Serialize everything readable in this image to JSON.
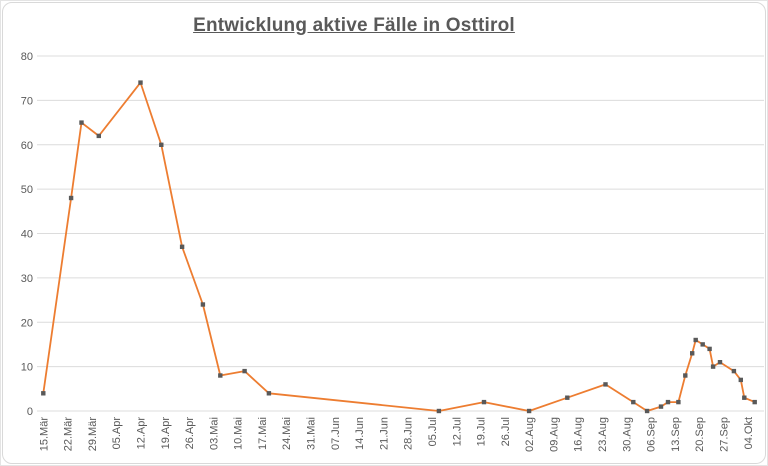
{
  "window": {
    "background": "#ffffff",
    "outer_border_color": "#e4e4e4",
    "chart_border_color": "#d9d9d9"
  },
  "chart_data": {
    "type": "line",
    "title": "Entwicklung aktive Fälle in Osttirol",
    "xlabel": "",
    "ylabel": "",
    "ylim": [
      0,
      80
    ],
    "y_ticks": [
      0,
      10,
      20,
      30,
      40,
      50,
      60,
      70,
      80
    ],
    "x_tick_interval_days": 7,
    "x_tick_labels": [
      "15.Mär",
      "22.Mär",
      "29.Mär",
      "05.Apr",
      "12.Apr",
      "19.Apr",
      "26.Apr",
      "03.Mai",
      "10.Mai",
      "17.Mai",
      "24.Mai",
      "31.Mai",
      "07.Jun",
      "14.Jun",
      "21.Jun",
      "28.Jun",
      "05.Jul",
      "12.Jul",
      "19.Jul",
      "26.Jul",
      "02.Aug",
      "09.Aug",
      "16.Aug",
      "23.Aug",
      "30.Aug",
      "06.Sep",
      "13.Sep",
      "20.Sep",
      "27.Sep",
      "04.Okt"
    ],
    "grid": "horizontal",
    "legend_position": "none",
    "colors": {
      "grid": "#dcdcdc",
      "axis_text": "#595959",
      "title_text": "#595959"
    },
    "series": [
      {
        "name": "aktive Fälle",
        "color": "#ED7D31",
        "marker": "square",
        "marker_color": "#595959",
        "points": [
          {
            "day": 0,
            "value": 4
          },
          {
            "day": 8,
            "value": 48
          },
          {
            "day": 11,
            "value": 65
          },
          {
            "day": 16,
            "value": 62
          },
          {
            "day": 28,
            "value": 74
          },
          {
            "day": 34,
            "value": 60
          },
          {
            "day": 40,
            "value": 37
          },
          {
            "day": 46,
            "value": 24
          },
          {
            "day": 51,
            "value": 8
          },
          {
            "day": 58,
            "value": 9
          },
          {
            "day": 65,
            "value": 4
          },
          {
            "day": 114,
            "value": 0
          },
          {
            "day": 127,
            "value": 2
          },
          {
            "day": 140,
            "value": 0
          },
          {
            "day": 151,
            "value": 3
          },
          {
            "day": 162,
            "value": 6
          },
          {
            "day": 170,
            "value": 2
          },
          {
            "day": 174,
            "value": 0
          },
          {
            "day": 178,
            "value": 1
          },
          {
            "day": 180,
            "value": 2
          },
          {
            "day": 183,
            "value": 2
          },
          {
            "day": 185,
            "value": 8
          },
          {
            "day": 187,
            "value": 13
          },
          {
            "day": 188,
            "value": 16
          },
          {
            "day": 190,
            "value": 15
          },
          {
            "day": 192,
            "value": 14
          },
          {
            "day": 193,
            "value": 10
          },
          {
            "day": 195,
            "value": 11
          },
          {
            "day": 199,
            "value": 9
          },
          {
            "day": 201,
            "value": 7
          },
          {
            "day": 202,
            "value": 3
          },
          {
            "day": 205,
            "value": 2
          }
        ]
      }
    ]
  }
}
